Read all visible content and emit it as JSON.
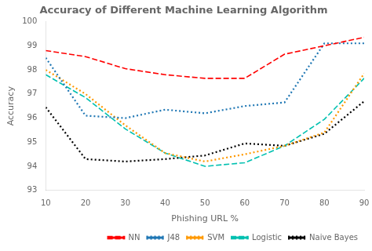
{
  "chart_data": {
    "type": "line",
    "title": "Accuracy of Different Machine Learning Algorithm",
    "xlabel": "Phishing URL %",
    "ylabel": "Accuracy",
    "x": [
      10,
      20,
      30,
      40,
      50,
      60,
      70,
      80,
      90
    ],
    "xlim": [
      10,
      90
    ],
    "xticks": [
      10,
      20,
      30,
      40,
      50,
      60,
      70,
      80,
      90
    ],
    "ylim": [
      93,
      100
    ],
    "yticks": [
      93,
      94,
      95,
      96,
      97,
      98,
      99,
      100
    ],
    "grid": false,
    "legend": "lower right",
    "series": [
      {
        "name": "NN",
        "color": "#ff0000",
        "line_style": "dashed",
        "values": [
          98.8,
          98.55,
          98.05,
          97.8,
          97.65,
          97.65,
          98.65,
          99.0,
          99.35
        ]
      },
      {
        "name": "J48",
        "color": "#1f77b4",
        "line_style": "dotted",
        "values": [
          98.5,
          96.1,
          96.0,
          96.35,
          96.2,
          96.5,
          96.65,
          99.1,
          99.1
        ]
      },
      {
        "name": "SVM",
        "color": "#ff9900",
        "line_style": "dotted",
        "values": [
          98.0,
          97.0,
          95.7,
          94.55,
          94.2,
          94.5,
          94.85,
          95.4,
          97.85
        ]
      },
      {
        "name": "Logistic",
        "color": "#00c0b0",
        "line_style": "dashed",
        "values": [
          97.8,
          96.85,
          95.55,
          94.55,
          94.0,
          94.15,
          94.85,
          95.95,
          97.65
        ]
      },
      {
        "name": "Naive Bayes",
        "color": "#000000",
        "line_style": "dotted",
        "values": [
          96.45,
          94.3,
          94.2,
          94.3,
          94.45,
          94.95,
          94.85,
          95.35,
          96.7
        ]
      }
    ]
  }
}
